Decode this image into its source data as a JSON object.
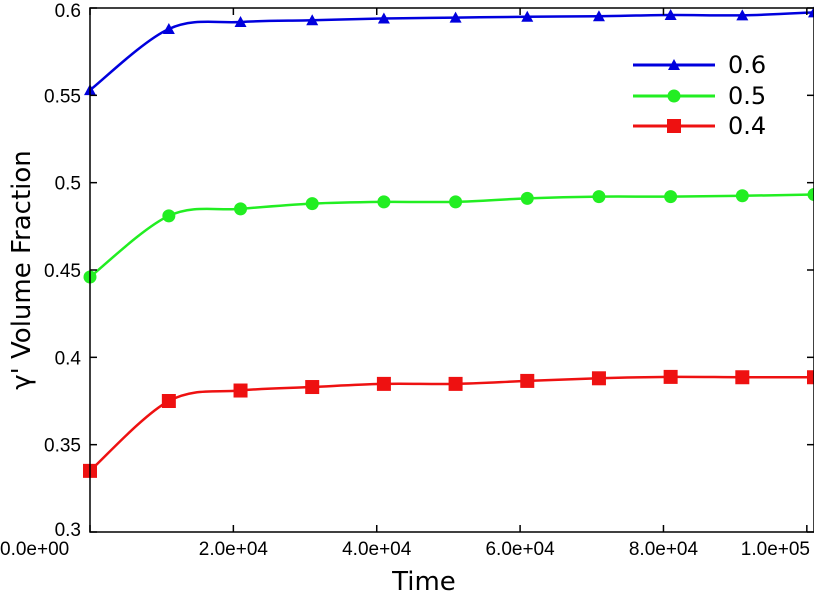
{
  "chart_data": {
    "type": "line",
    "xlabel": "Time",
    "ylabel": "γ' Volume Fraction",
    "xlim": [
      0,
      101000
    ],
    "ylim": [
      0.3,
      0.6
    ],
    "x_ticks": [
      0,
      20000,
      40000,
      60000,
      80000,
      100000
    ],
    "x_tick_labels": [
      "0.0e+00",
      "2.0e+04",
      "4.0e+04",
      "6.0e+04",
      "8.0e+04",
      "1.0e+05"
    ],
    "y_ticks": [
      0.3,
      0.35,
      0.4,
      0.45,
      0.5,
      0.55,
      0.6
    ],
    "y_tick_labels": [
      "0.3",
      "0.35",
      "0.4",
      "0.45",
      "0.5",
      "0.55",
      "0.6"
    ],
    "legend_position": "top-right",
    "x": [
      0,
      11000,
      21000,
      31000,
      41000,
      51000,
      61000,
      71000,
      81000,
      91000,
      101000
    ],
    "series": [
      {
        "name": "0.6",
        "color": "#0000dd",
        "marker": "triangle",
        "values": [
          0.553,
          0.588,
          0.592,
          0.593,
          0.594,
          0.5945,
          0.595,
          0.5953,
          0.596,
          0.5958,
          0.5975
        ]
      },
      {
        "name": "0.5",
        "color": "#22ee22",
        "marker": "circle",
        "values": [
          0.446,
          0.481,
          0.485,
          0.488,
          0.489,
          0.489,
          0.491,
          0.492,
          0.492,
          0.4925,
          0.4932
        ]
      },
      {
        "name": "0.4",
        "color": "#ee1111",
        "marker": "square",
        "values": [
          0.335,
          0.375,
          0.381,
          0.383,
          0.3848,
          0.3848,
          0.3865,
          0.388,
          0.3888,
          0.3886,
          0.3886
        ]
      }
    ]
  }
}
